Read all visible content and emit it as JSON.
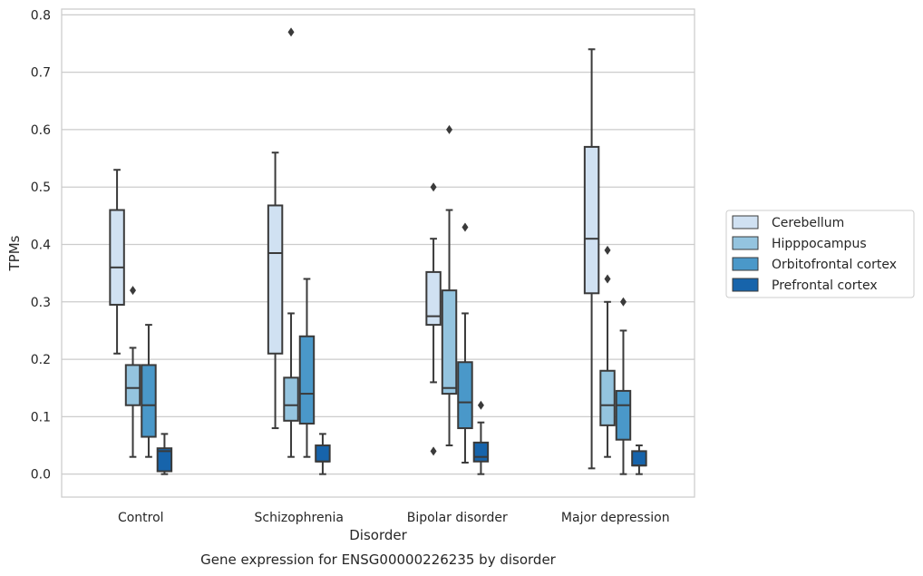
{
  "chart_data": {
    "type": "box",
    "caption": "Gene expression for ENSG00000226235 by disorder",
    "xlabel": "Disorder",
    "ylabel": "TPMs",
    "ylim": [
      -0.04,
      0.81
    ],
    "yticks": [
      0.0,
      0.1,
      0.2,
      0.3,
      0.4,
      0.5,
      0.6,
      0.7,
      0.8
    ],
    "ytick_labels": [
      "0.0",
      "0.1",
      "0.2",
      "0.3",
      "0.4",
      "0.5",
      "0.6",
      "0.7",
      "0.8"
    ],
    "grid": "horizontal",
    "legend_position": "right",
    "categories": [
      "Control",
      "Schizophrenia",
      "Bipolar disorder",
      "Major depression"
    ],
    "series": [
      {
        "name": "Cerebellum",
        "color": "#d0e1f2",
        "boxes": [
          {
            "whisker_low": 0.21,
            "q1": 0.295,
            "median": 0.36,
            "q3": 0.46,
            "whisker_high": 0.53,
            "outliers": []
          },
          {
            "whisker_low": 0.08,
            "q1": 0.21,
            "median": 0.385,
            "q3": 0.468,
            "whisker_high": 0.56,
            "outliers": []
          },
          {
            "whisker_low": 0.16,
            "q1": 0.26,
            "median": 0.275,
            "q3": 0.352,
            "whisker_high": 0.41,
            "outliers": [
              0.5,
              0.04
            ]
          },
          {
            "whisker_low": 0.01,
            "q1": 0.315,
            "median": 0.41,
            "q3": 0.57,
            "whisker_high": 0.74,
            "outliers": []
          }
        ]
      },
      {
        "name": "Hipppocampus",
        "color": "#94c4df",
        "boxes": [
          {
            "whisker_low": 0.03,
            "q1": 0.12,
            "median": 0.15,
            "q3": 0.19,
            "whisker_high": 0.22,
            "outliers": [
              0.32
            ]
          },
          {
            "whisker_low": 0.03,
            "q1": 0.093,
            "median": 0.12,
            "q3": 0.168,
            "whisker_high": 0.28,
            "outliers": [
              0.77
            ]
          },
          {
            "whisker_low": 0.05,
            "q1": 0.14,
            "median": 0.15,
            "q3": 0.32,
            "whisker_high": 0.46,
            "outliers": [
              0.6
            ]
          },
          {
            "whisker_low": 0.03,
            "q1": 0.085,
            "median": 0.12,
            "q3": 0.18,
            "whisker_high": 0.3,
            "outliers": [
              0.39,
              0.34
            ]
          }
        ]
      },
      {
        "name": "Orbitofrontal cortex",
        "color": "#4a98c9",
        "boxes": [
          {
            "whisker_low": 0.03,
            "q1": 0.065,
            "median": 0.12,
            "q3": 0.19,
            "whisker_high": 0.26,
            "outliers": []
          },
          {
            "whisker_low": 0.03,
            "q1": 0.088,
            "median": 0.14,
            "q3": 0.24,
            "whisker_high": 0.34,
            "outliers": []
          },
          {
            "whisker_low": 0.02,
            "q1": 0.08,
            "median": 0.125,
            "q3": 0.195,
            "whisker_high": 0.28,
            "outliers": [
              0.43
            ]
          },
          {
            "whisker_low": 0.0,
            "q1": 0.06,
            "median": 0.12,
            "q3": 0.145,
            "whisker_high": 0.25,
            "outliers": [
              0.3
            ]
          }
        ]
      },
      {
        "name": "Prefrontal cortex",
        "color": "#1764ab",
        "boxes": [
          {
            "whisker_low": 0.0,
            "q1": 0.005,
            "median": 0.04,
            "q3": 0.045,
            "whisker_high": 0.07,
            "outliers": []
          },
          {
            "whisker_low": 0.0,
            "q1": 0.022,
            "median": 0.022,
            "q3": 0.05,
            "whisker_high": 0.07,
            "outliers": []
          },
          {
            "whisker_low": 0.0,
            "q1": 0.022,
            "median": 0.03,
            "q3": 0.055,
            "whisker_high": 0.09,
            "outliers": [
              0.12
            ]
          },
          {
            "whisker_low": 0.0,
            "q1": 0.015,
            "median": 0.015,
            "q3": 0.04,
            "whisker_high": 0.05,
            "outliers": []
          }
        ]
      }
    ]
  }
}
